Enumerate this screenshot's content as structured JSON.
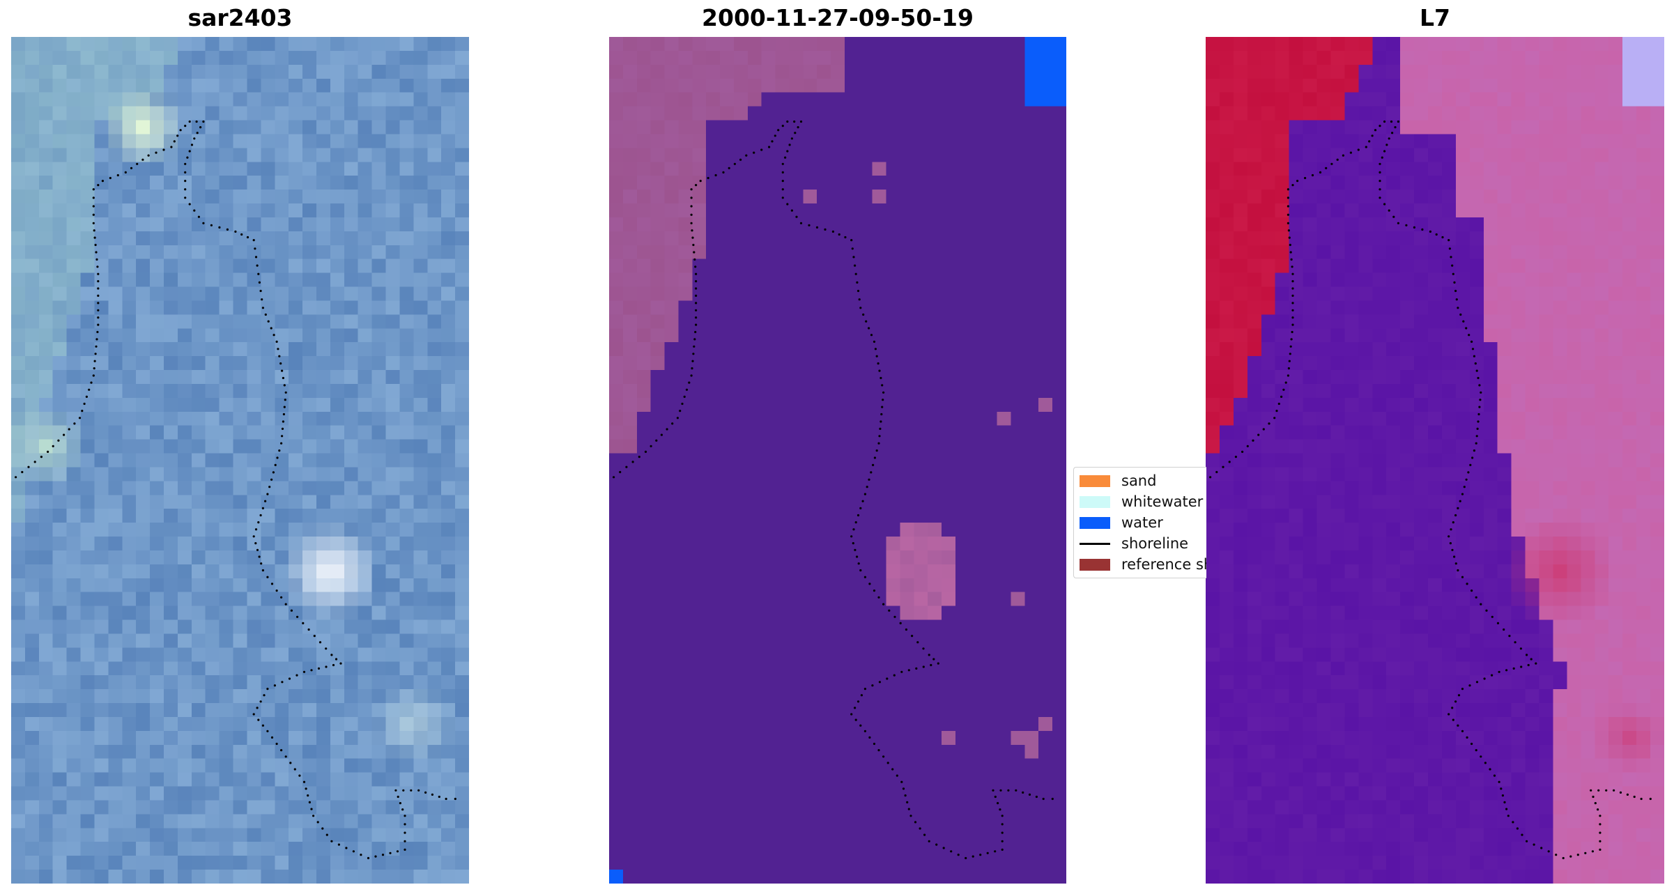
{
  "panels": [
    {
      "id": "p1",
      "title": "sar2403",
      "image": "sar-image"
    },
    {
      "id": "p2",
      "title": "2000-11-27-09-50-19",
      "image": "classified-image"
    },
    {
      "id": "p3",
      "title": "L7",
      "image": "mndwi-image"
    }
  ],
  "legend": {
    "items": [
      {
        "label": "sand",
        "color": "#f98b3a",
        "kind": "patch"
      },
      {
        "label": "whitewater",
        "color": "#cdfaf8",
        "kind": "patch"
      },
      {
        "label": "water",
        "color": "#0a5dfb",
        "kind": "patch"
      },
      {
        "label": "shoreline",
        "color": "#000000",
        "kind": "line"
      },
      {
        "label": "reference shoreline",
        "color": "#993333",
        "kind": "patch"
      }
    ]
  },
  "colors": {
    "sar_base": "#6d96c7",
    "land_overlay": "#a05a9a",
    "sea_class": "#522292",
    "water_class": "#0a5dfb",
    "mndwi_high": "#c4103f",
    "mndwi_low": "#5a14a6",
    "shoreline_points": "#000000"
  }
}
